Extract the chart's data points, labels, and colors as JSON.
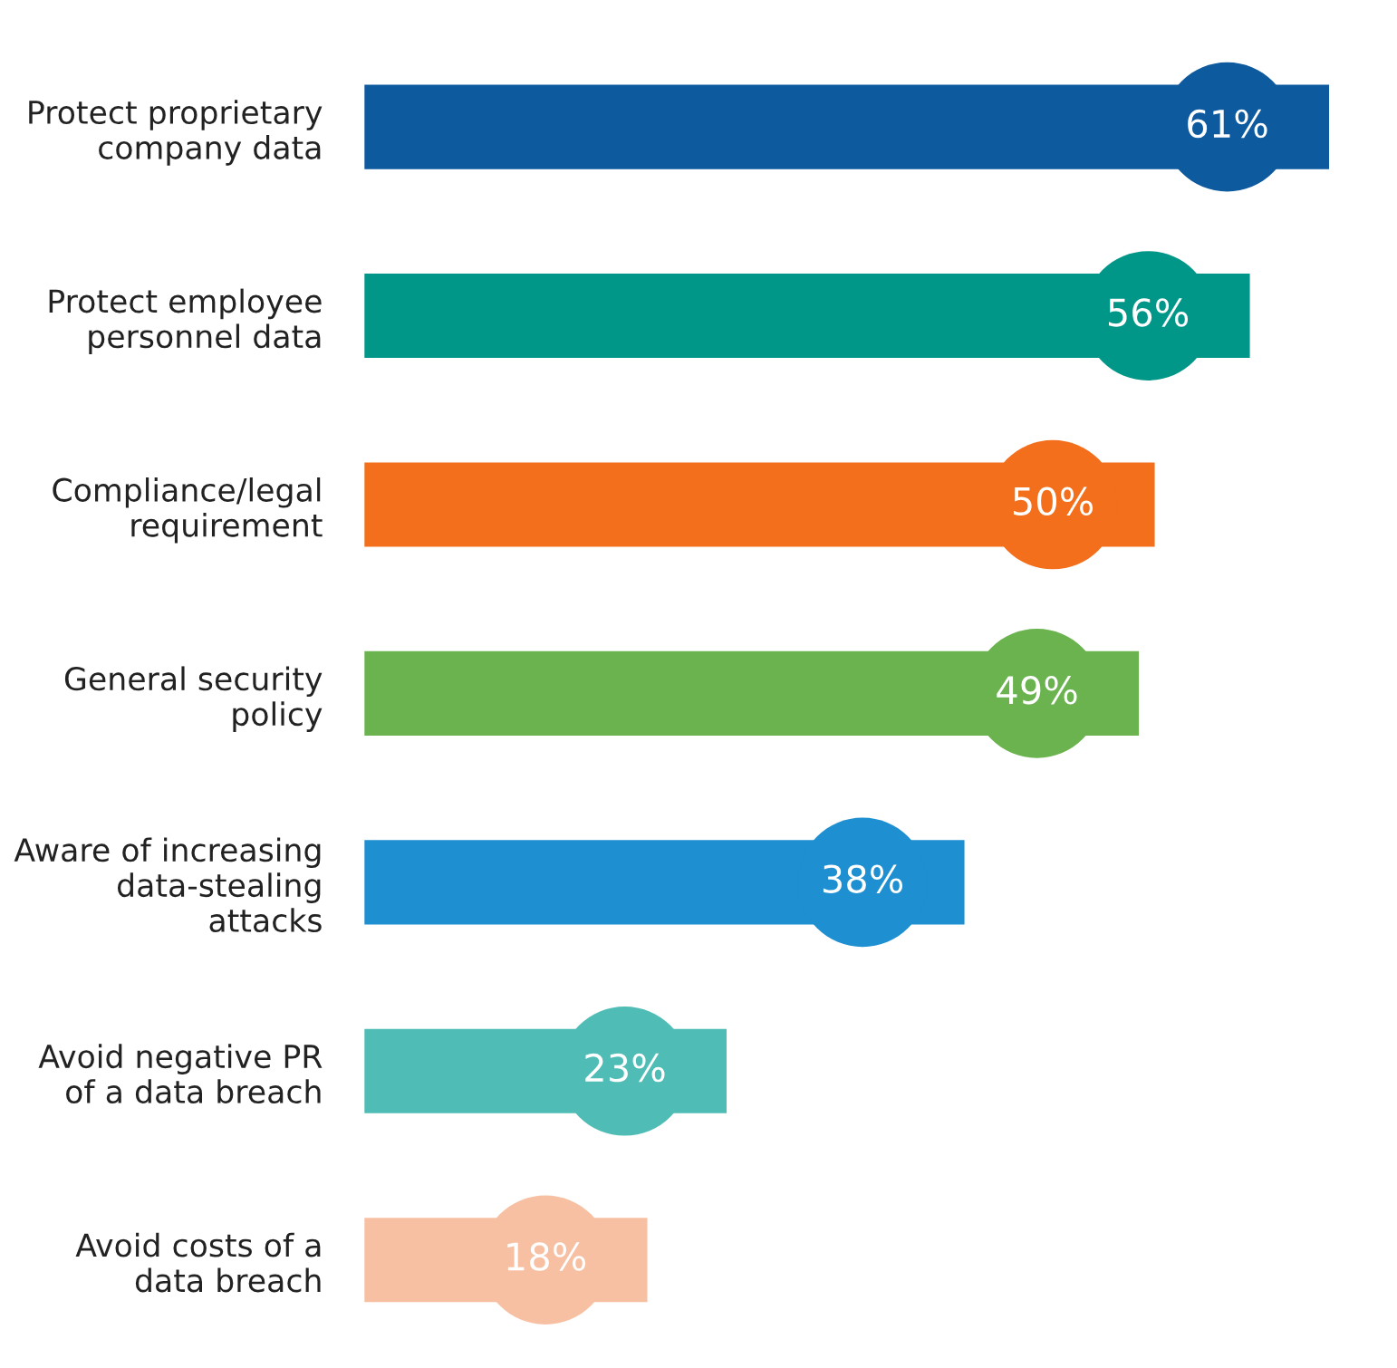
{
  "chart_data": {
    "type": "bar",
    "orientation": "horizontal",
    "tick_labels": "y",
    "categories": [
      "Protect proprietary\ncompany data",
      "Protect employee\npersonnel data",
      "Compliance/legal\nrequirement",
      "General security\npolicy",
      "Aware of increasing\ndata-stealing\nattacks",
      "Avoid negative PR\nof a data breach",
      "Avoid costs of a\ndata breach"
    ],
    "values": [
      61,
      56,
      50,
      49,
      38,
      23,
      18
    ],
    "colors": [
      "#0e5a9f",
      "#009688",
      "#f36f1b",
      "#6ab34e",
      "#1e8fd0",
      "#4fbdb6",
      "#f7c0a2"
    ],
    "value_labels": [
      "61%",
      "56%",
      "50%",
      "49%",
      "38%",
      "23%",
      "18%"
    ]
  }
}
